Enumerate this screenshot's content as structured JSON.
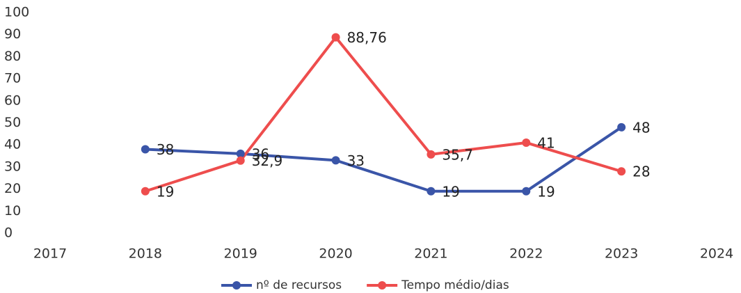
{
  "chart_data": {
    "type": "line",
    "x": [
      2018,
      2019,
      2020,
      2021,
      2022,
      2023
    ],
    "series": [
      {
        "name": "nº de recursos",
        "color": "#3a55a8",
        "values": [
          38,
          36,
          33,
          19,
          19,
          48
        ],
        "value_labels": [
          "38",
          "36",
          "33",
          "19",
          "19",
          "48"
        ]
      },
      {
        "name": "Tempo médio/dias",
        "color": "#ee4d4d",
        "values": [
          19,
          32.9,
          88.76,
          35.7,
          41,
          28
        ],
        "value_labels": [
          "19",
          "32,9",
          "88,76",
          "35,7",
          "41",
          "28"
        ]
      }
    ],
    "xlim": [
      2017,
      2024
    ],
    "xticks": [
      2017,
      2018,
      2019,
      2020,
      2021,
      2022,
      2023,
      2024
    ],
    "ylim": [
      0,
      100
    ],
    "yticks": [
      0,
      10,
      20,
      30,
      40,
      50,
      60,
      70,
      80,
      90,
      100
    ],
    "grid": false,
    "legend": "bottom"
  }
}
